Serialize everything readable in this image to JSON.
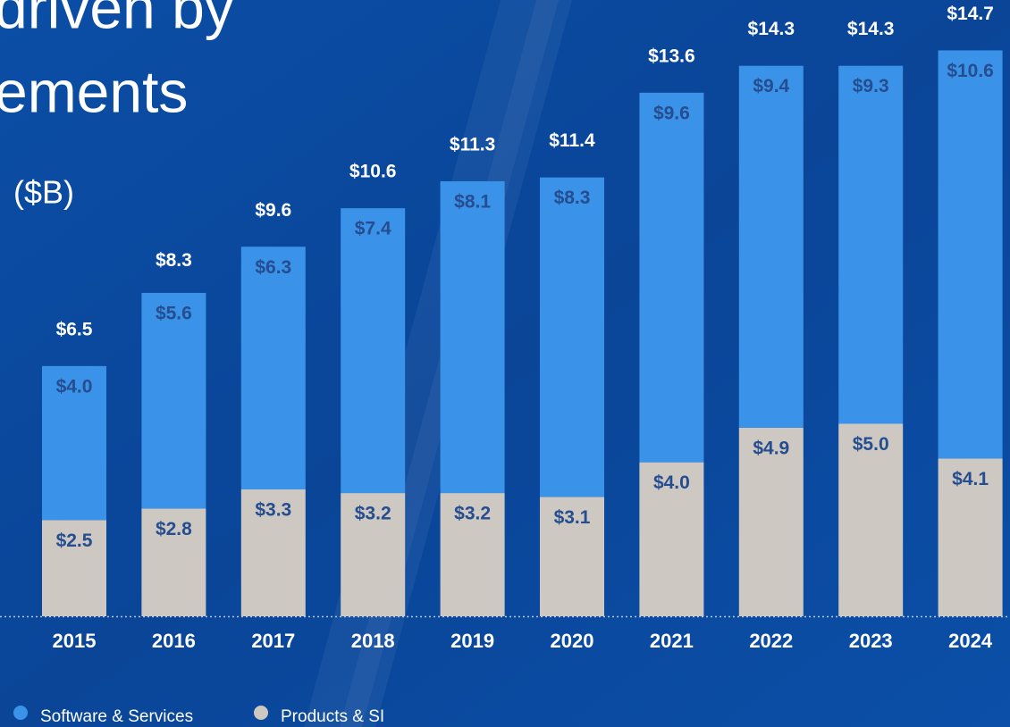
{
  "chart_data": {
    "type": "stacked_bar",
    "title": [
      "driven by",
      "ements"
    ],
    "unit": "($B)",
    "categories": [
      "2015",
      "2016",
      "2017",
      "2018",
      "2019",
      "2020",
      "2021",
      "2022",
      "2023",
      "2024"
    ],
    "series": [
      {
        "name": "Software & Services",
        "color": "#3a93e8",
        "values": [
          4.0,
          5.6,
          6.3,
          7.4,
          8.1,
          8.3,
          9.6,
          9.4,
          9.3,
          10.6
        ],
        "value_labels": [
          "$4.0",
          "$5.6",
          "$6.3",
          "$7.4",
          "$8.1",
          "$8.3",
          "$9.6",
          "$9.4",
          "$9.3",
          "$10.6"
        ]
      },
      {
        "name": "Products & SI",
        "color": "#cdc8c2",
        "values": [
          2.5,
          2.8,
          3.3,
          3.2,
          3.2,
          3.1,
          4.0,
          4.9,
          5.0,
          4.1
        ],
        "value_labels": [
          "$2.5",
          "$2.8",
          "$3.3",
          "$3.2",
          "$3.2",
          "$3.1",
          "$4.0",
          "$4.9",
          "$5.0",
          "$4.1"
        ]
      }
    ],
    "totals": [
      6.5,
      8.3,
      9.6,
      10.6,
      11.3,
      11.4,
      13.6,
      14.3,
      14.3,
      14.7
    ],
    "total_labels": [
      "$6.5",
      "$8.3",
      "$9.6",
      "$10.6",
      "$11.3",
      "$11.4",
      "$13.6",
      "$14.3",
      "$14.3",
      "$14.7"
    ],
    "ylim": [
      0,
      15
    ]
  }
}
